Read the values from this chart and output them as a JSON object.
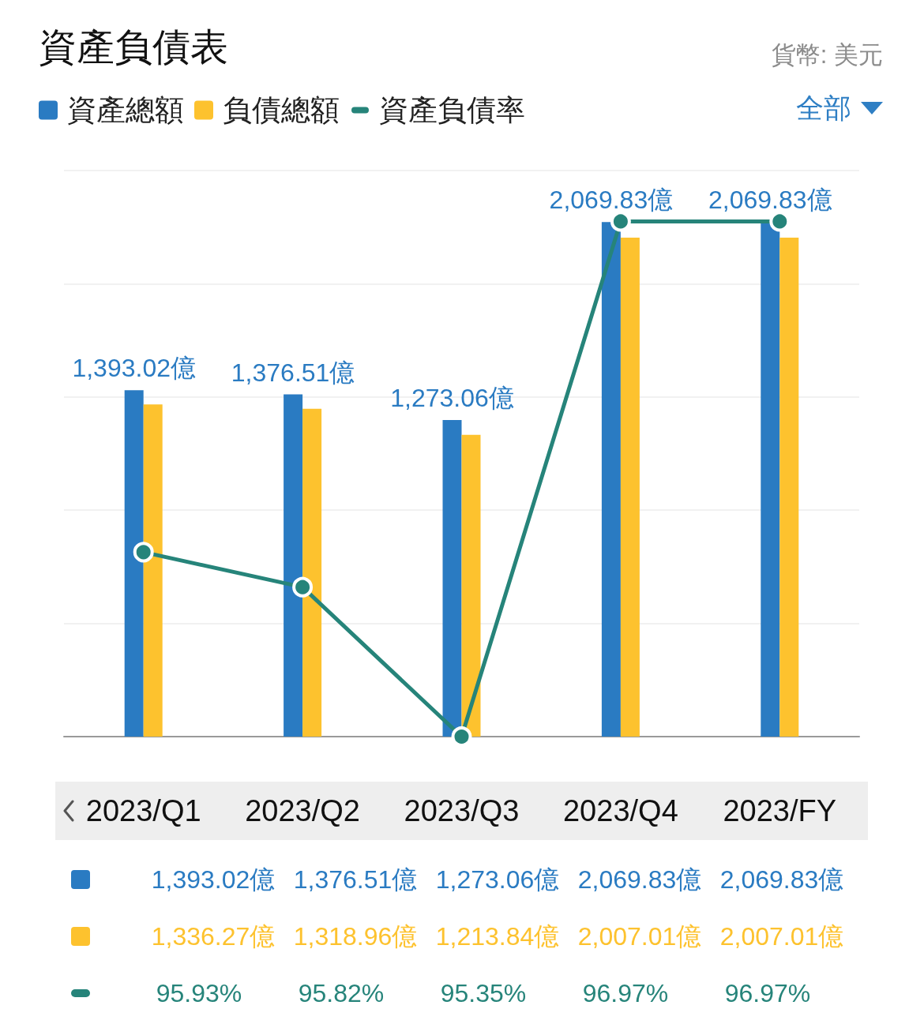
{
  "chart_data": {
    "type": "bar",
    "title": "資產負債表",
    "annotations": [
      "貨幣: 美元",
      "全部"
    ],
    "categories": [
      "2023/Q1",
      "2023/Q2",
      "2023/Q3",
      "2023/Q4",
      "2023/FY"
    ],
    "series": [
      {
        "name": "資產總額",
        "color": "#2a7bc2",
        "values": [
          1393.02,
          1376.51,
          1273.06,
          2069.83,
          2069.83
        ],
        "value_labels": [
          "1,393.02億",
          "1,376.51億",
          "1,273.06億",
          "2,069.83億",
          "2,069.83億"
        ]
      },
      {
        "name": "負債總額",
        "color": "#fdc22e",
        "values": [
          1336.27,
          1318.96,
          1213.84,
          2007.01,
          2007.01
        ],
        "value_labels": [
          "1,336.27億",
          "1,318.96億",
          "1,213.84億",
          "2,007.01億",
          "2,007.01億"
        ]
      },
      {
        "name": "資產負債率",
        "type": "line",
        "axis": "y2",
        "color": "#26847a",
        "values": [
          95.93,
          95.82,
          95.35,
          96.97,
          96.97
        ],
        "value_labels": [
          "95.93%",
          "95.82%",
          "95.35%",
          "96.97%",
          "96.97%"
        ]
      }
    ],
    "ylim": [
      0,
      2276.8
    ],
    "yticks": [
      {
        "value": 0,
        "label": null
      },
      {
        "value": 455.36,
        "label": null
      },
      {
        "value": 910.72,
        "label": null
      },
      {
        "value": 1366.08,
        "label": null
      },
      {
        "value": 1821.44,
        "label": null
      },
      {
        "value": 2276.8,
        "label": null
      }
    ],
    "y2lim": [
      95.35,
      97.13
    ],
    "grid": "y",
    "legend": "top left",
    "tick_labels": false,
    "marker": "circle",
    "line_style": "solid"
  }
}
